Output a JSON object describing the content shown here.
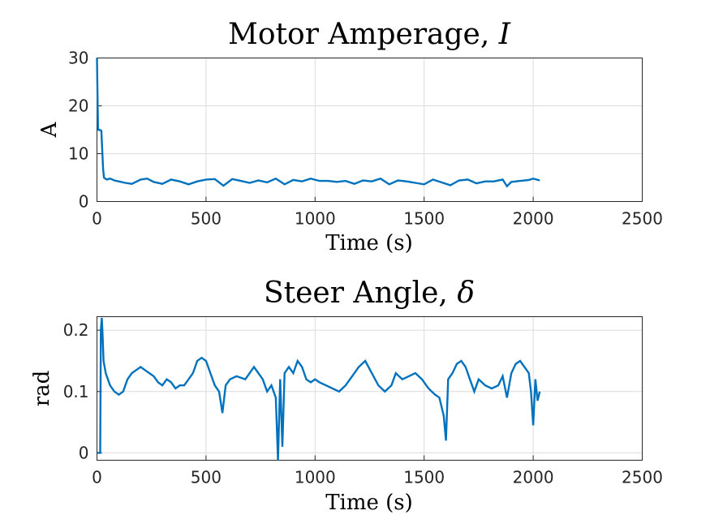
{
  "colors": {
    "series": "#0072BD",
    "grid": "#dcdcdc",
    "axis": "#262626"
  },
  "chart_data": [
    {
      "type": "line",
      "title_text": "Motor Amperage, ",
      "title_symbol": "I",
      "xlabel": "Time (s)",
      "ylabel": "A",
      "xlim": [
        0,
        2500
      ],
      "ylim": [
        0,
        30
      ],
      "xticks": [
        0,
        500,
        1000,
        1500,
        2000,
        2500
      ],
      "yticks": [
        0,
        10,
        20,
        30
      ],
      "grid": true,
      "series": [
        {
          "x": [
            0,
            5,
            10,
            20,
            25,
            28,
            32,
            45,
            60,
            80,
            100,
            130,
            160,
            200,
            230,
            260,
            300,
            340,
            380,
            420,
            460,
            500,
            540,
            580,
            620,
            660,
            700,
            740,
            780,
            820,
            860,
            900,
            940,
            980,
            1020,
            1060,
            1100,
            1140,
            1180,
            1220,
            1260,
            1300,
            1340,
            1380,
            1420,
            1460,
            1500,
            1540,
            1580,
            1620,
            1660,
            1700,
            1740,
            1780,
            1820,
            1860,
            1880,
            1900,
            1940,
            1980,
            2000,
            2030
          ],
          "y": [
            30,
            15,
            15,
            14.8,
            10,
            7,
            5,
            4.6,
            4.8,
            4.4,
            4.2,
            3.9,
            3.7,
            4.6,
            4.8,
            4.1,
            3.7,
            4.6,
            4.2,
            3.6,
            4.2,
            4.6,
            4.7,
            3.3,
            4.7,
            4.3,
            3.9,
            4.4,
            4.0,
            4.8,
            3.6,
            4.5,
            4.2,
            4.8,
            4.3,
            4.3,
            4.1,
            4.3,
            3.7,
            4.4,
            4.2,
            4.8,
            3.6,
            4.4,
            4.2,
            3.9,
            3.6,
            4.6,
            4.0,
            3.4,
            4.4,
            4.6,
            3.8,
            4.2,
            4.2,
            4.6,
            3.2,
            4.1,
            4.3,
            4.5,
            4.8,
            4.4
          ]
        }
      ]
    },
    {
      "type": "line",
      "title_text": "Steer Angle, ",
      "title_symbol": "δ",
      "xlabel": "Time (s)",
      "ylabel": "rad",
      "xlim": [
        0,
        2500
      ],
      "ylim": [
        -0.012,
        0.222
      ],
      "xticks": [
        0,
        500,
        1000,
        1500,
        2000,
        2500
      ],
      "yticks": [
        0,
        0.1,
        0.2
      ],
      "ytick_labels": [
        "0",
        "0.1",
        "0.2"
      ],
      "grid": true,
      "series": [
        {
          "x": [
            0,
            10,
            15,
            18,
            22,
            25,
            30,
            40,
            60,
            80,
            100,
            120,
            140,
            160,
            180,
            200,
            220,
            240,
            260,
            280,
            300,
            320,
            340,
            360,
            380,
            400,
            420,
            440,
            460,
            480,
            500,
            520,
            540,
            560,
            575,
            590,
            610,
            640,
            680,
            700,
            720,
            740,
            760,
            780,
            800,
            820,
            830,
            840,
            850,
            860,
            880,
            900,
            920,
            940,
            960,
            980,
            1000,
            1020,
            1050,
            1080,
            1110,
            1140,
            1170,
            1200,
            1230,
            1260,
            1290,
            1320,
            1350,
            1370,
            1400,
            1430,
            1460,
            1490,
            1520,
            1550,
            1570,
            1590,
            1600,
            1610,
            1630,
            1650,
            1670,
            1690,
            1710,
            1730,
            1750,
            1780,
            1810,
            1840,
            1860,
            1880,
            1900,
            1920,
            1940,
            1960,
            1980,
            1990,
            2000,
            2010,
            2020,
            2030
          ],
          "y": [
            0,
            0,
            0,
            0.2,
            0.22,
            0.2,
            0.15,
            0.13,
            0.11,
            0.1,
            0.095,
            0.1,
            0.12,
            0.13,
            0.135,
            0.14,
            0.135,
            0.13,
            0.125,
            0.115,
            0.11,
            0.12,
            0.115,
            0.105,
            0.11,
            0.11,
            0.12,
            0.13,
            0.15,
            0.155,
            0.15,
            0.13,
            0.11,
            0.1,
            0.065,
            0.11,
            0.12,
            0.125,
            0.12,
            0.13,
            0.14,
            0.13,
            0.12,
            0.1,
            0.11,
            0.09,
            -0.012,
            0.12,
            0.01,
            0.13,
            0.14,
            0.13,
            0.15,
            0.14,
            0.12,
            0.115,
            0.12,
            0.115,
            0.11,
            0.105,
            0.1,
            0.11,
            0.125,
            0.14,
            0.15,
            0.13,
            0.11,
            0.1,
            0.11,
            0.13,
            0.12,
            0.125,
            0.13,
            0.12,
            0.105,
            0.095,
            0.09,
            0.06,
            0.02,
            0.12,
            0.13,
            0.145,
            0.15,
            0.14,
            0.12,
            0.1,
            0.12,
            0.11,
            0.105,
            0.11,
            0.125,
            0.09,
            0.13,
            0.145,
            0.15,
            0.14,
            0.13,
            0.1,
            0.045,
            0.12,
            0.085,
            0.1
          ]
        }
      ]
    }
  ]
}
